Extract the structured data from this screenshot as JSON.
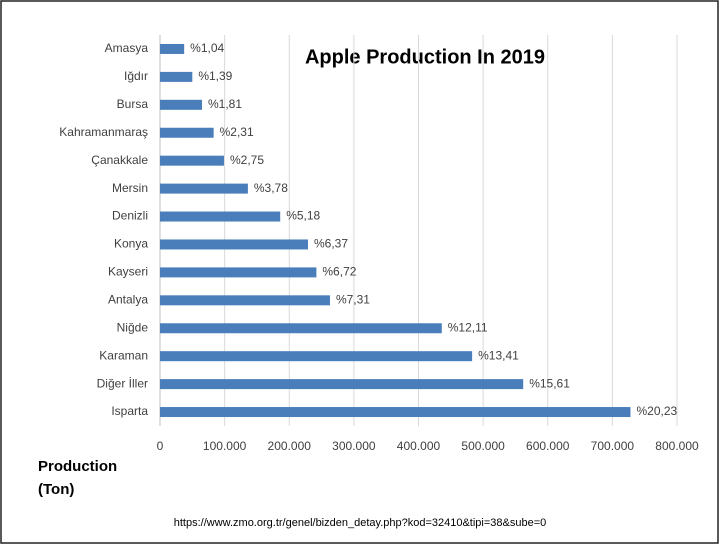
{
  "chart_data": {
    "type": "bar",
    "orientation": "horizontal",
    "title": "Apple Production In 2019",
    "x_label": [
      "Production",
      "(Ton)"
    ],
    "source": "https://www.zmo.org.tr/genel/bizden_detay.php?kod=32410&tipi=38&sube=0",
    "categories": [
      "Amasya",
      "Iğdır",
      "Bursa",
      "Kahramanmaraş",
      "Çanakkale",
      "Mersin",
      "Denizli",
      "Konya",
      "Kayseri",
      "Antalya",
      "Niğde",
      "Karaman",
      "Diğer İller",
      "Isparta"
    ],
    "values": [
      37400,
      50000,
      65000,
      83000,
      99000,
      136000,
      186000,
      229000,
      242000,
      263000,
      436000,
      483000,
      562000,
      728000
    ],
    "share_labels": [
      "%1,04",
      "%1,39",
      "%1,81",
      "%2,31",
      "%2,75",
      "%3,78",
      "%5,18",
      "%6,37",
      "%6,72",
      "%7,31",
      "%12,11",
      "%13,41",
      "%15,61",
      "%20,23"
    ],
    "color": "#4a7ebb",
    "xlim": [
      0,
      800000
    ],
    "xticks": [
      0,
      {
        "value": 100000,
        "label": "100.000"
      },
      {
        "value": 200000,
        "label": "200.000"
      },
      {
        "value": 300000,
        "label": "300.000"
      },
      {
        "value": 400000,
        "label": "400.000"
      },
      {
        "value": 500000,
        "label": "500.000"
      },
      {
        "value": 600000,
        "label": "600.000"
      },
      {
        "value": 700000,
        "label": "700.000"
      },
      {
        "value": 800000,
        "label": "800.000"
      }
    ],
    "grid": true
  }
}
